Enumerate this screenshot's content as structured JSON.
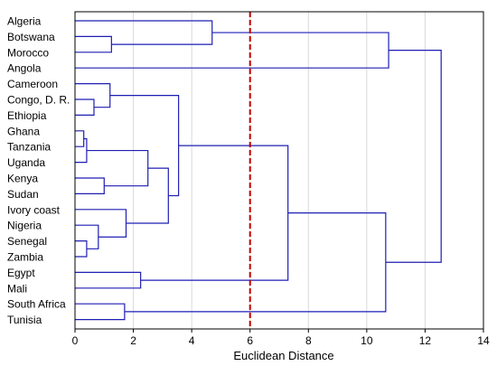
{
  "chart_data": {
    "type": "dendrogram",
    "title": "",
    "xlabel": "Euclidean Distance",
    "ylabel": "",
    "xlim": [
      0,
      14
    ],
    "xticks": [
      0,
      2,
      4,
      6,
      8,
      10,
      12,
      14
    ],
    "grid": "vertical",
    "cut_line": {
      "value": 6,
      "color": "#c00000",
      "style": "dashed"
    },
    "colors": {
      "branch": "#1f1fb4",
      "grid": "#d9d9d9",
      "frame": "#000000"
    },
    "leaves": [
      "Algeria",
      "Botswana",
      "Morocco",
      "Angola",
      "Cameroon",
      "Congo, D. R.",
      "Ethiopia",
      "Ghana",
      "Tanzania",
      "Uganda",
      "Kenya",
      "Sudan",
      "Ivory coast",
      "Nigeria",
      "Senegal",
      "Zambia",
      "Egypt",
      "Mali",
      "South Africa",
      "Tunisia"
    ],
    "merges": [
      {
        "id": "B_M",
        "a": "Botswana",
        "b": "Morocco",
        "height": 1.25
      },
      {
        "id": "A_BM",
        "a": "Algeria",
        "b": "B_M",
        "height": 4.7
      },
      {
        "id": "G_T",
        "a": "Ghana",
        "b": "Tanzania",
        "height": 0.3
      },
      {
        "id": "GT_U",
        "a": "G_T",
        "b": "Uganda",
        "height": 0.4
      },
      {
        "id": "Se_Z",
        "a": "Senegal",
        "b": "Zambia",
        "height": 0.4
      },
      {
        "id": "C_E",
        "a": "Congo, D. R.",
        "b": "Ethiopia",
        "height": 0.65
      },
      {
        "id": "Ni_SZ",
        "a": "Nigeria",
        "b": "Se_Z",
        "height": 0.8
      },
      {
        "id": "K_Su",
        "a": "Kenya",
        "b": "Sudan",
        "height": 1.0
      },
      {
        "id": "Ca_CE",
        "a": "Cameroon",
        "b": "C_E",
        "height": 1.2
      },
      {
        "id": "IC_N",
        "a": "Ivory coast",
        "b": "Ni_SZ",
        "height": 1.75
      },
      {
        "id": "SA_Tu",
        "a": "South Africa",
        "b": "Tunisia",
        "height": 1.7
      },
      {
        "id": "Eg_Ma",
        "a": "Egypt",
        "b": "Mali",
        "height": 2.25
      },
      {
        "id": "GTU_KS",
        "a": "GT_U",
        "b": "K_Su",
        "height": 2.5
      },
      {
        "id": "X1",
        "a": "GTU_KS",
        "b": "IC_N",
        "height": 3.2
      },
      {
        "id": "X2",
        "a": "Ca_CE",
        "b": "X1",
        "height": 3.55
      },
      {
        "id": "X3",
        "a": "A_BM",
        "b": "Angola",
        "height": 10.75
      },
      {
        "id": "X4",
        "a": "X2",
        "b": "Eg_Ma",
        "height": 7.3
      },
      {
        "id": "X5",
        "a": "X4",
        "b": "SA_Tu",
        "height": 10.65
      },
      {
        "id": "ROOT",
        "a": "X3",
        "b": "X5",
        "height": 12.55
      }
    ]
  }
}
